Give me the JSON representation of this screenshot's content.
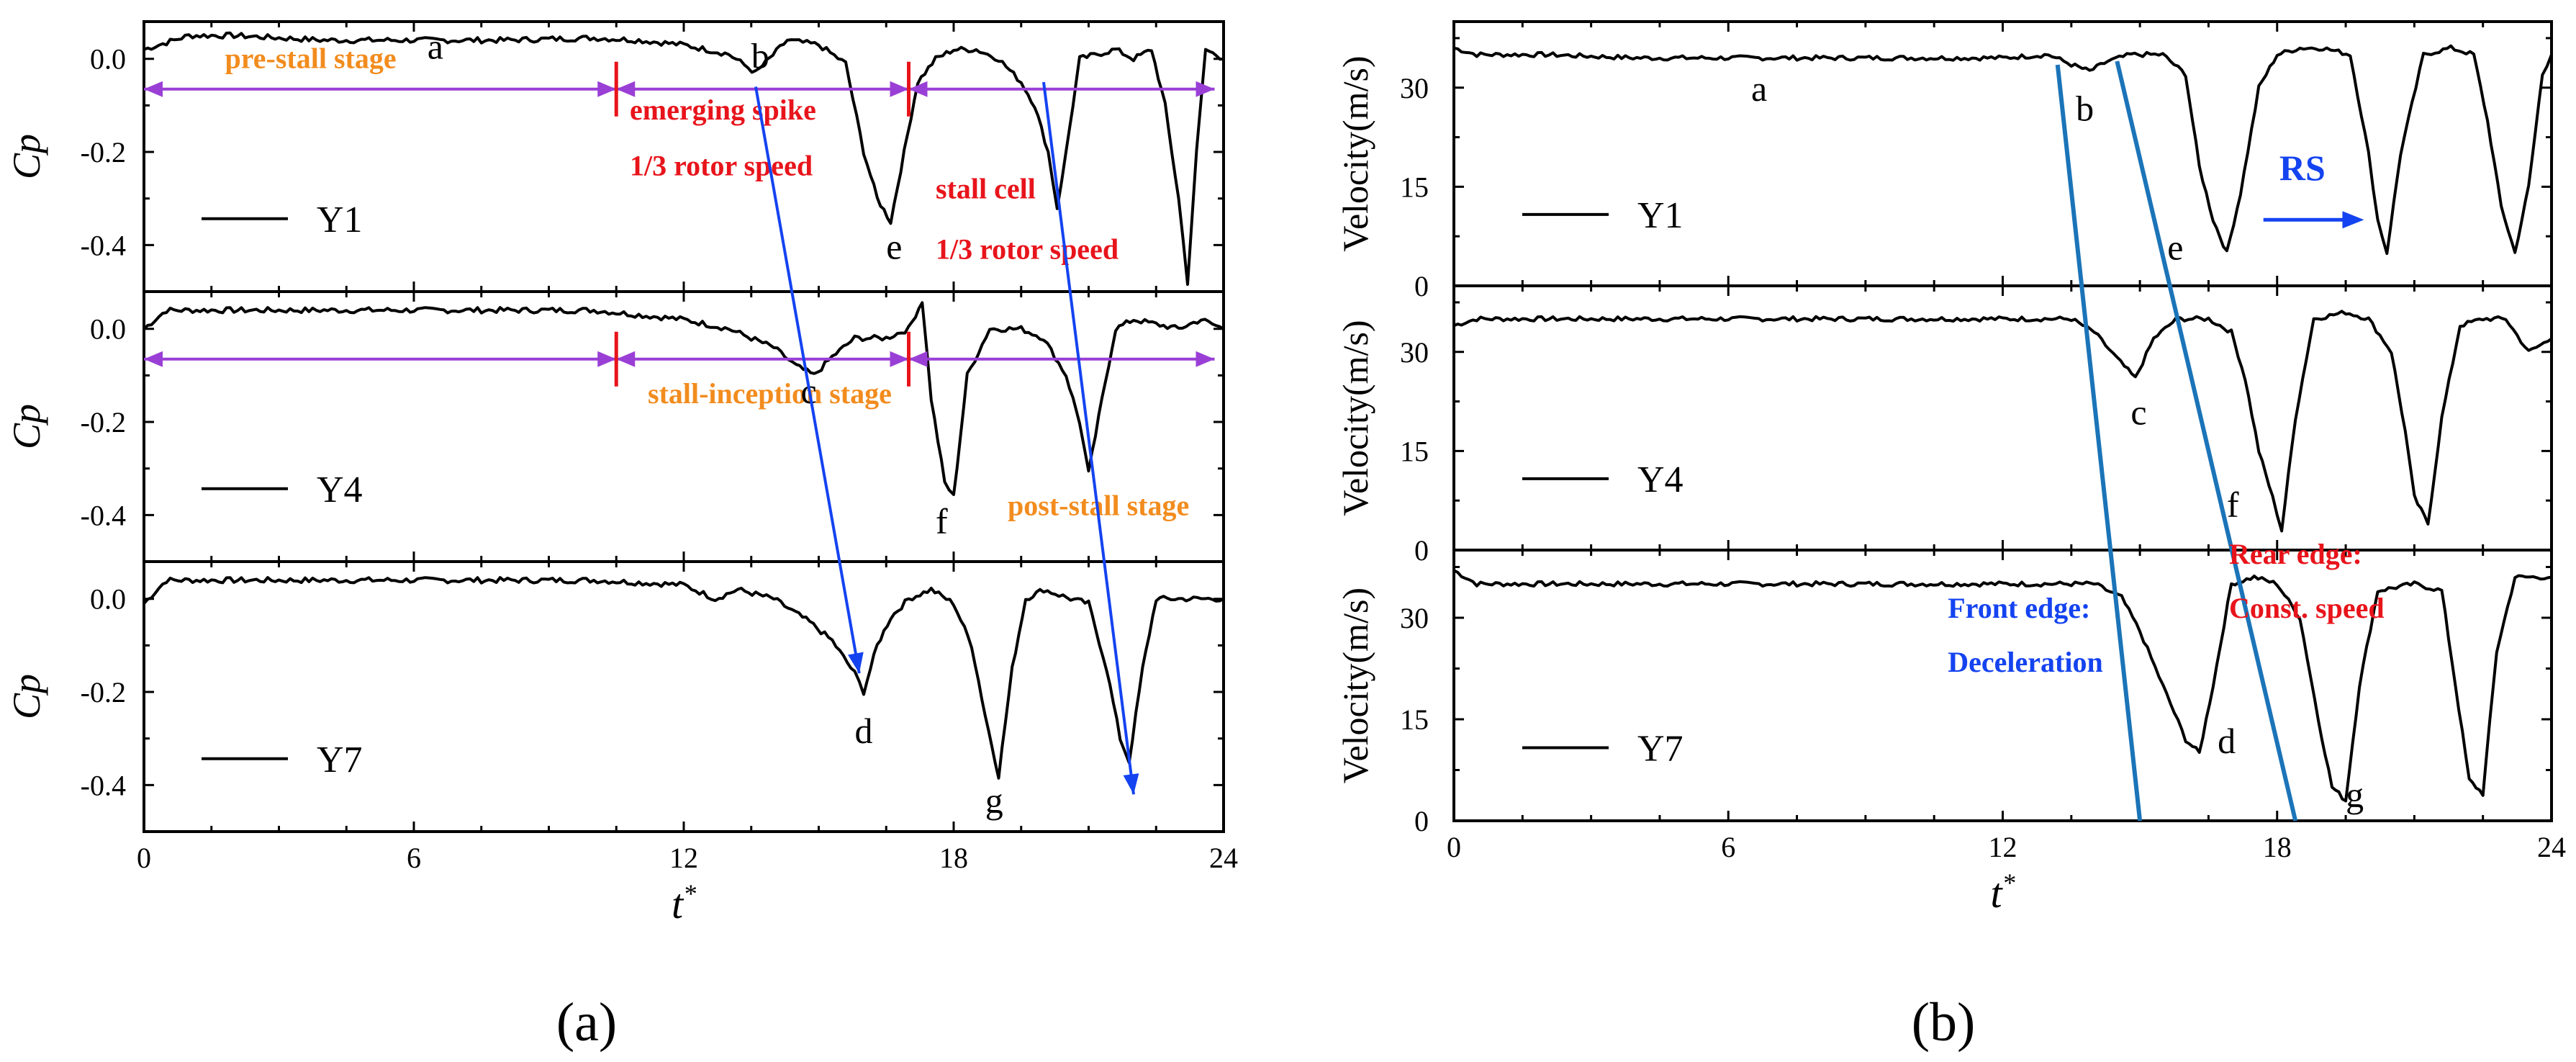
{
  "figures": {
    "a": {
      "caption": "(a)"
    },
    "b": {
      "caption": "(b)"
    }
  },
  "chart_data": [
    {
      "panel": "a",
      "type": "line",
      "xlabel": "t*",
      "xlim": [
        0,
        24
      ],
      "xticks": [
        0,
        6,
        12,
        18,
        24
      ],
      "ylabel": "Cp",
      "ylim": [
        -0.5,
        0.08
      ],
      "yticks": [
        "0.0",
        "-0.2",
        "-0.4"
      ],
      "series": [
        {
          "name": "Y1",
          "points": [
            [
              0,
              0.02
            ],
            [
              1,
              0.05
            ],
            [
              2,
              0.05
            ],
            [
              4,
              0.04
            ],
            [
              6,
              0.04
            ],
            [
              8,
              0.04
            ],
            [
              10,
              0.045
            ],
            [
              11,
              0.04
            ],
            [
              12,
              0.03
            ],
            [
              13,
              0.01
            ],
            [
              13.6,
              -0.03
            ],
            [
              13.9,
              0
            ],
            [
              14.3,
              0.04
            ],
            [
              15,
              0.03
            ],
            [
              15.6,
              -0.01
            ],
            [
              16,
              -0.2
            ],
            [
              16.3,
              -0.3
            ],
            [
              16.6,
              -0.35
            ],
            [
              16.9,
              -0.2
            ],
            [
              17.2,
              -0.05
            ],
            [
              17.6,
              0
            ],
            [
              18,
              0.02
            ],
            [
              18.5,
              0.02
            ],
            [
              19,
              0.0
            ],
            [
              19.5,
              -0.05
            ],
            [
              19.8,
              -0.1
            ],
            [
              20.1,
              -0.2
            ],
            [
              20.3,
              -0.32
            ],
            [
              20.5,
              -0.2
            ],
            [
              20.8,
              0
            ],
            [
              21.2,
              0.01
            ],
            [
              21.6,
              0.02
            ],
            [
              22,
              0.0
            ],
            [
              22.4,
              0.02
            ],
            [
              22.7,
              -0.1
            ],
            [
              23,
              -0.3
            ],
            [
              23.2,
              -0.48
            ],
            [
              23.4,
              -0.2
            ],
            [
              23.6,
              0.02
            ],
            [
              24,
              0.0
            ]
          ]
        },
        {
          "name": "Y4",
          "points": [
            [
              0,
              0.0
            ],
            [
              0.5,
              0.04
            ],
            [
              2,
              0.04
            ],
            [
              4,
              0.04
            ],
            [
              6,
              0.04
            ],
            [
              8,
              0.04
            ],
            [
              10,
              0.04
            ],
            [
              11,
              0.03
            ],
            [
              12,
              0.02
            ],
            [
              13,
              0.0
            ],
            [
              14,
              -0.04
            ],
            [
              14.5,
              -0.08
            ],
            [
              14.9,
              -0.1
            ],
            [
              15.3,
              -0.06
            ],
            [
              15.8,
              -0.02
            ],
            [
              16.5,
              -0.02
            ],
            [
              17,
              0.0
            ],
            [
              17.3,
              0.06
            ],
            [
              17.5,
              -0.15
            ],
            [
              17.8,
              -0.33
            ],
            [
              18,
              -0.36
            ],
            [
              18.3,
              -0.1
            ],
            [
              18.8,
              0.0
            ],
            [
              19.5,
              0.0
            ],
            [
              20,
              -0.02
            ],
            [
              20.5,
              -0.1
            ],
            [
              20.8,
              -0.2
            ],
            [
              21,
              -0.31
            ],
            [
              21.3,
              -0.15
            ],
            [
              21.6,
              0.0
            ],
            [
              22,
              0.02
            ],
            [
              23,
              0.0
            ],
            [
              23.5,
              0.02
            ],
            [
              24,
              0.0
            ]
          ]
        },
        {
          "name": "Y7",
          "points": [
            [
              0,
              -0.01
            ],
            [
              0.5,
              0.04
            ],
            [
              2,
              0.04
            ],
            [
              4,
              0.04
            ],
            [
              6,
              0.04
            ],
            [
              8,
              0.04
            ],
            [
              10,
              0.04
            ],
            [
              12,
              0.03
            ],
            [
              12.7,
              0.0
            ],
            [
              13.2,
              0.02
            ],
            [
              14,
              0.0
            ],
            [
              14.8,
              -0.05
            ],
            [
              15.3,
              -0.09
            ],
            [
              15.8,
              -0.16
            ],
            [
              16,
              -0.2
            ],
            [
              16.3,
              -0.1
            ],
            [
              16.6,
              -0.04
            ],
            [
              17,
              0.0
            ],
            [
              17.5,
              0.02
            ],
            [
              18,
              -0.01
            ],
            [
              18.4,
              -0.1
            ],
            [
              18.7,
              -0.25
            ],
            [
              19,
              -0.38
            ],
            [
              19.3,
              -0.15
            ],
            [
              19.6,
              0.0
            ],
            [
              20,
              0.02
            ],
            [
              20.6,
              0.0
            ],
            [
              21,
              -0.01
            ],
            [
              21.4,
              -0.15
            ],
            [
              21.7,
              -0.3
            ],
            [
              21.9,
              -0.35
            ],
            [
              22.2,
              -0.15
            ],
            [
              22.5,
              0.0
            ],
            [
              23,
              0.0
            ],
            [
              24,
              0.0
            ]
          ]
        }
      ],
      "annotations": {
        "point_labels": [
          "a",
          "b",
          "c",
          "d",
          "e",
          "f",
          "g"
        ],
        "pre_stall": "pre-stall stage",
        "stall_inception": "stall-inception stage",
        "post_stall": "post-stall stage",
        "emerging_spike": "emerging spike",
        "spike_speed": "1/3 rotor speed",
        "stall_cell": "stall cell",
        "cell_speed": "1/3 rotor speed"
      }
    },
    {
      "panel": "b",
      "type": "line",
      "xlabel": "t*",
      "xlim": [
        0,
        24
      ],
      "xticks": [
        0,
        6,
        12,
        18,
        24
      ],
      "ylabel": "Velocity(m/s)",
      "ylim": [
        0,
        40
      ],
      "yticks": [
        "0",
        "15",
        "30"
      ],
      "series": [
        {
          "name": "Y1",
          "points": [
            [
              0,
              36
            ],
            [
              0.5,
              35
            ],
            [
              2,
              35
            ],
            [
              4,
              34.5
            ],
            [
              6,
              34.5
            ],
            [
              8,
              34.5
            ],
            [
              10,
              34.5
            ],
            [
              12,
              34.5
            ],
            [
              13,
              35
            ],
            [
              13.5,
              33.5
            ],
            [
              13.9,
              32.5
            ],
            [
              14.3,
              34
            ],
            [
              14.8,
              35
            ],
            [
              15.5,
              35
            ],
            [
              16,
              32
            ],
            [
              16.3,
              18
            ],
            [
              16.6,
              10
            ],
            [
              16.9,
              5
            ],
            [
              17.2,
              14
            ],
            [
              17.6,
              30
            ],
            [
              18,
              35
            ],
            [
              18.5,
              36
            ],
            [
              19,
              36
            ],
            [
              19.6,
              35
            ],
            [
              20,
              20
            ],
            [
              20.2,
              10
            ],
            [
              20.4,
              5
            ],
            [
              20.7,
              20
            ],
            [
              21.2,
              35
            ],
            [
              21.8,
              36
            ],
            [
              22.3,
              35
            ],
            [
              22.6,
              25
            ],
            [
              22.9,
              12
            ],
            [
              23.2,
              5
            ],
            [
              23.5,
              15
            ],
            [
              23.8,
              32
            ],
            [
              24,
              35
            ]
          ]
        },
        {
          "name": "Y4",
          "points": [
            [
              0,
              34
            ],
            [
              0.5,
              35
            ],
            [
              2,
              35
            ],
            [
              4,
              35
            ],
            [
              6,
              35
            ],
            [
              8,
              35
            ],
            [
              10,
              35
            ],
            [
              12,
              35
            ],
            [
              13.5,
              35
            ],
            [
              14,
              33
            ],
            [
              14.5,
              29
            ],
            [
              14.9,
              26
            ],
            [
              15.3,
              32
            ],
            [
              15.8,
              35
            ],
            [
              16.5,
              35
            ],
            [
              17,
              33
            ],
            [
              17.3,
              26
            ],
            [
              17.6,
              15
            ],
            [
              17.9,
              8
            ],
            [
              18.1,
              3
            ],
            [
              18.4,
              20
            ],
            [
              18.8,
              35
            ],
            [
              19.5,
              36
            ],
            [
              20,
              35
            ],
            [
              20.5,
              30
            ],
            [
              20.8,
              18
            ],
            [
              21,
              8
            ],
            [
              21.3,
              4
            ],
            [
              21.6,
              20
            ],
            [
              22,
              34
            ],
            [
              22.5,
              35
            ],
            [
              23,
              35
            ],
            [
              23.5,
              30
            ],
            [
              24,
              32
            ]
          ]
        },
        {
          "name": "Y7",
          "points": [
            [
              0,
              37
            ],
            [
              0.5,
              35
            ],
            [
              2,
              35
            ],
            [
              4,
              35
            ],
            [
              6,
              35
            ],
            [
              8,
              35
            ],
            [
              10,
              35
            ],
            [
              12,
              35
            ],
            [
              14,
              35
            ],
            [
              14.6,
              33
            ],
            [
              15,
              28
            ],
            [
              15.5,
              20
            ],
            [
              16,
              12
            ],
            [
              16.3,
              10
            ],
            [
              16.6,
              20
            ],
            [
              17,
              35
            ],
            [
              17.5,
              36
            ],
            [
              18,
              35
            ],
            [
              18.5,
              30
            ],
            [
              18.9,
              15
            ],
            [
              19.2,
              5
            ],
            [
              19.5,
              3
            ],
            [
              19.8,
              20
            ],
            [
              20.2,
              34
            ],
            [
              21,
              35
            ],
            [
              21.6,
              34
            ],
            [
              21.9,
              20
            ],
            [
              22.2,
              6
            ],
            [
              22.5,
              4
            ],
            [
              22.8,
              25
            ],
            [
              23.2,
              36
            ],
            [
              24,
              36
            ]
          ]
        }
      ],
      "front_edge_line": [
        [
          13.2,
          40
        ],
        [
          15,
          0
        ]
      ],
      "rear_edge_line": [
        [
          14.5,
          40
        ],
        [
          18.4,
          0
        ]
      ],
      "annotations": {
        "point_labels": [
          "a",
          "b",
          "c",
          "d",
          "e",
          "f",
          "g"
        ],
        "rs": "RS",
        "front_edge": "Front edge:",
        "front_edge_desc": "Deceleration",
        "rear_edge": "Rear edge:",
        "rear_edge_desc": "Const. speed"
      }
    }
  ],
  "colors": {
    "purple": "#9a3fd6",
    "red": "#e8141b",
    "blue": "#1443f0",
    "orange": "#f28c1e",
    "teal": "#1b74b8",
    "black": "#000000"
  }
}
